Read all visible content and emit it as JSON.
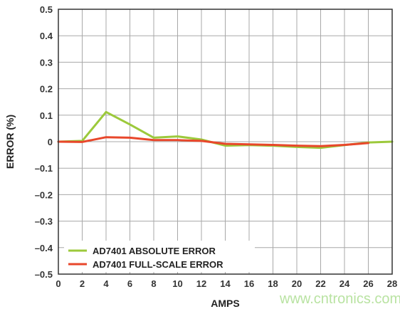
{
  "chart_data": {
    "type": "line",
    "xlabel": "AMPS",
    "ylabel": "ERROR (%)",
    "xlim": [
      0,
      28
    ],
    "ylim": [
      -0.5,
      0.5
    ],
    "xticks": [
      0,
      2,
      4,
      6,
      8,
      10,
      12,
      14,
      16,
      18,
      20,
      22,
      24,
      26,
      28
    ],
    "yticks": [
      0.5,
      0.4,
      0.3,
      0.2,
      0.1,
      0,
      -0.1,
      -0.2,
      -0.3,
      -0.4,
      -0.5
    ],
    "ytick_labels": [
      "0.5",
      "0.4",
      "0.3",
      "0.2",
      "0.1",
      "0",
      "–0.1",
      "–0.2",
      "–0.3",
      "–0.4",
      "–0.5"
    ],
    "grid": true,
    "legend_position": "bottom-left",
    "series": [
      {
        "name": "AD7401 ABSOLUTE ERROR",
        "color": "#9cc93b",
        "x": [
          0,
          2,
          4,
          6,
          8,
          10,
          12,
          14,
          16,
          18,
          20,
          22,
          24,
          26,
          28
        ],
        "y": [
          0.0,
          0.003,
          0.112,
          0.065,
          0.015,
          0.02,
          0.008,
          -0.015,
          -0.013,
          -0.015,
          -0.02,
          -0.023,
          -0.013,
          -0.003,
          0.0
        ]
      },
      {
        "name": "AD7401 FULL-SCALE ERROR",
        "color": "#e8472b",
        "x": [
          0,
          2,
          4,
          6,
          8,
          10,
          12,
          14,
          16,
          18,
          20,
          22,
          24,
          26
        ],
        "y": [
          0.0,
          -0.001,
          0.017,
          0.015,
          0.006,
          0.006,
          0.003,
          -0.008,
          -0.01,
          -0.012,
          -0.015,
          -0.017,
          -0.012,
          -0.005
        ]
      }
    ]
  },
  "watermark": "www.cntronics.com"
}
